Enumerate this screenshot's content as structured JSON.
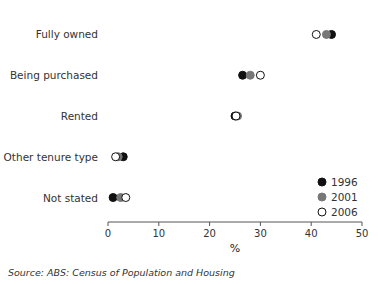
{
  "chart_data": {
    "type": "dot",
    "categories": [
      "Fully owned",
      "Being purchased",
      "Rented",
      "Other tenure type",
      "Not stated"
    ],
    "series": [
      {
        "name": "1996",
        "color": "#111111",
        "marker": "filled",
        "values": [
          44.0,
          26.5,
          25.0,
          3.0,
          1.0
        ]
      },
      {
        "name": "2001",
        "color": "#777777",
        "marker": "filled",
        "values": [
          43.0,
          28.0,
          25.5,
          2.0,
          2.5
        ]
      },
      {
        "name": "2006",
        "color": "#111111",
        "marker": "open",
        "values": [
          41.0,
          30.0,
          25.2,
          1.5,
          3.5
        ]
      }
    ],
    "xlabel": "%",
    "xlim": [
      0,
      50
    ],
    "xticks": [
      0,
      10,
      20,
      30,
      40,
      50
    ],
    "legend": "lower right",
    "grid": false,
    "annotations": [
      "Source: ABS: Census of Population and Housing"
    ]
  }
}
